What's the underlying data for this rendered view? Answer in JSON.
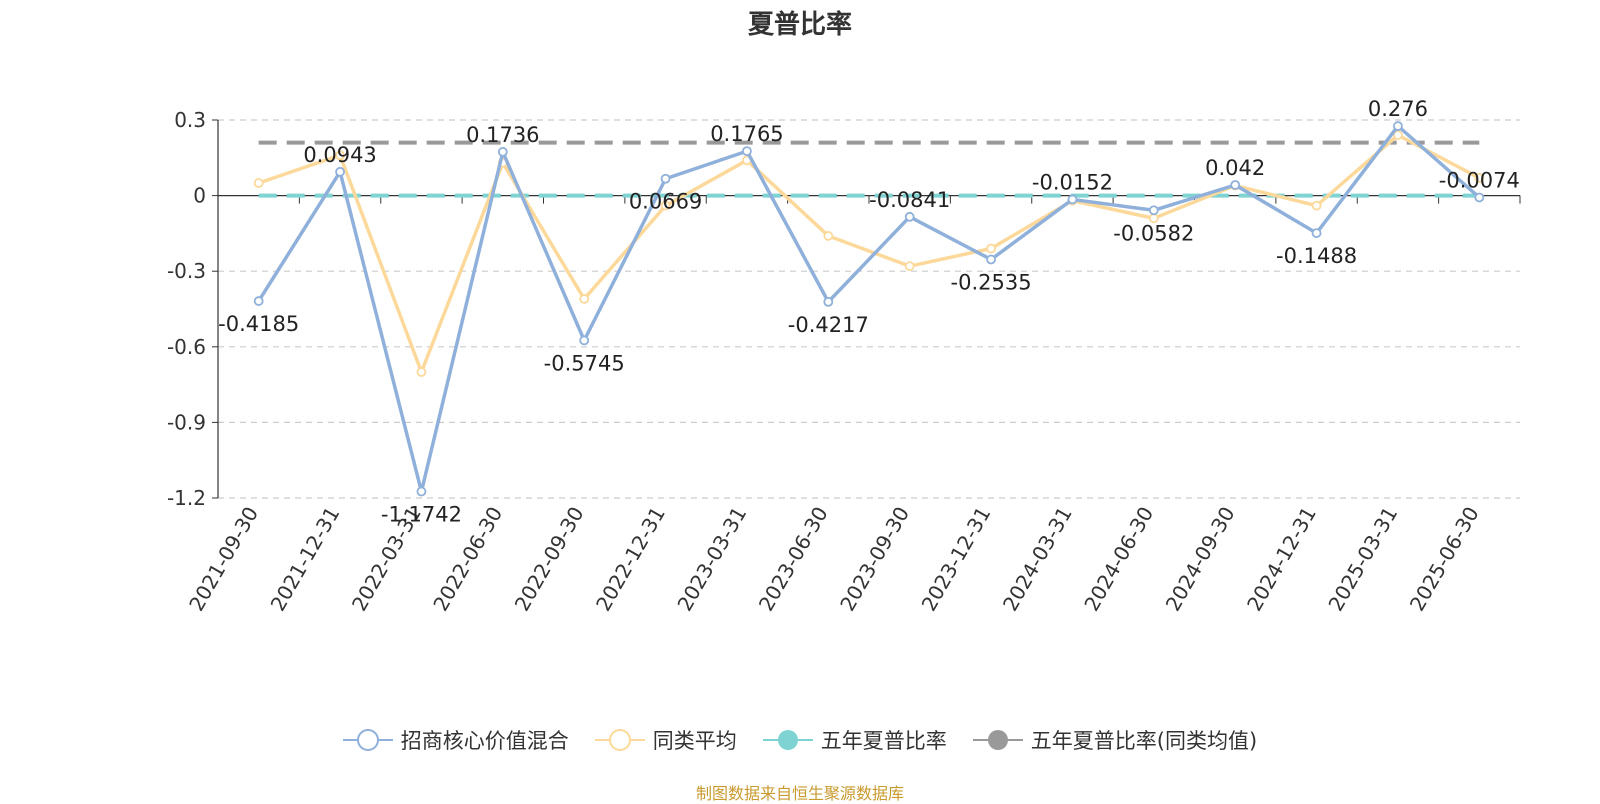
{
  "source_note": "制图数据来自恒生聚源数据库",
  "chart_data": {
    "type": "line",
    "title": "夏普比率",
    "xlabel": "",
    "ylabel": "",
    "ylim": [
      -1.2,
      0.3
    ],
    "yticks": [
      0.3,
      0,
      -0.3,
      -0.6,
      -0.9,
      -1.2
    ],
    "ytick_labels": [
      "0.3",
      "0",
      "-0.3",
      "-0.6",
      "-0.9",
      "-1.2"
    ],
    "grid": true,
    "legend_position": "bottom",
    "categories": [
      "2021-09-30",
      "2021-12-31",
      "2022-03-31",
      "2022-06-30",
      "2022-09-30",
      "2022-12-31",
      "2023-03-31",
      "2023-06-30",
      "2023-09-30",
      "2023-12-31",
      "2024-03-31",
      "2024-06-30",
      "2024-09-30",
      "2024-12-31",
      "2025-03-31",
      "2025-06-30"
    ],
    "series": [
      {
        "name": "招商核心价值混合",
        "color": "#8fb0da",
        "values": [
          -0.4185,
          0.0943,
          -1.1742,
          0.1736,
          -0.5745,
          0.0669,
          0.1765,
          -0.4217,
          -0.0841,
          -0.2535,
          -0.0152,
          -0.0582,
          0.042,
          -0.1488,
          0.276,
          -0.0074
        ],
        "labels": [
          "-0.4185",
          "0.0943",
          "-1.1742",
          "0.1736",
          "-0.5745",
          "0.0669",
          "0.1765",
          "-0.4217",
          "-0.0841",
          "-0.2535",
          "-0.0152",
          "-0.0582",
          "0.042",
          "-0.1488",
          "0.276",
          "-0.0074"
        ]
      },
      {
        "name": "同类平均",
        "color": "#fcd99a",
        "values": [
          0.05,
          0.16,
          -0.7,
          0.13,
          -0.41,
          -0.04,
          0.14,
          -0.16,
          -0.28,
          -0.21,
          -0.02,
          -0.09,
          0.04,
          -0.04,
          0.24,
          0.07
        ]
      },
      {
        "name": "五年夏普比率",
        "color": "#7fd3d3",
        "value": 0.0
      },
      {
        "name": "五年夏普比率(同类均值)",
        "color": "#999999",
        "value": 0.21
      }
    ]
  }
}
